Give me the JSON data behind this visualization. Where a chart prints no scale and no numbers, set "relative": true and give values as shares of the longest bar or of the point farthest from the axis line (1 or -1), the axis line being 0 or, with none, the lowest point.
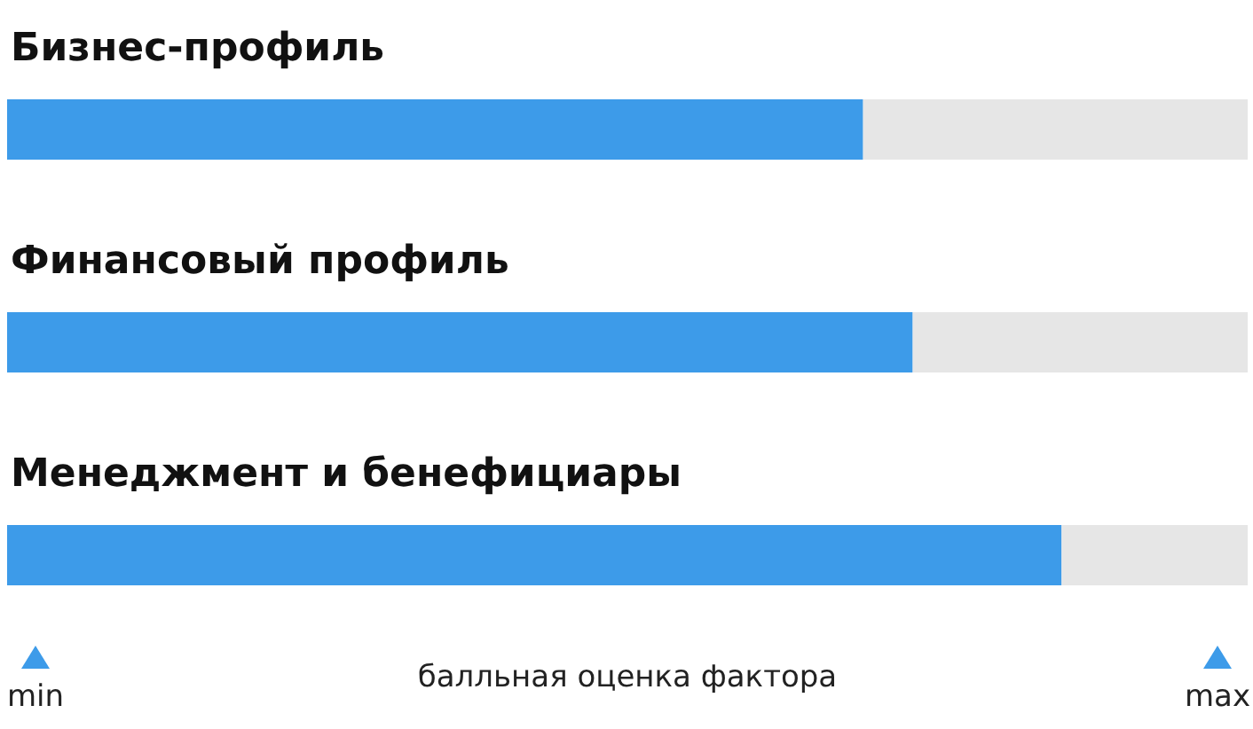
{
  "chart_data": {
    "type": "bar",
    "orientation": "horizontal",
    "relative": true,
    "stacked": true,
    "categories": [
      "Бизнес-профиль",
      "Финансовый профиль",
      "Менеджмент и бенефициары"
    ],
    "series": [
      {
        "color": "#3d9be9",
        "values": [
          0.69,
          0.73,
          0.85
        ]
      },
      {
        "color": "#e6e6e6",
        "values": [
          0.31,
          0.27,
          0.15
        ]
      }
    ],
    "xlabel": "балльная оценка фактора",
    "annotations": [
      "min",
      "max"
    ]
  }
}
